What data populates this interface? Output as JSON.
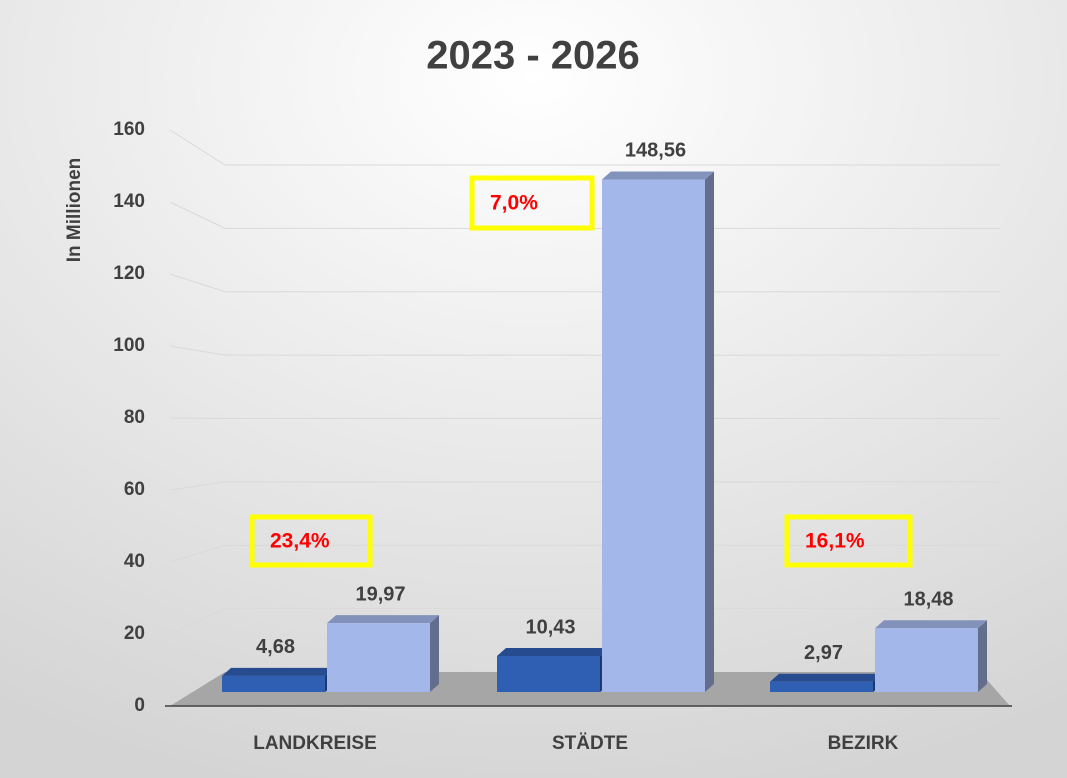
{
  "chart_data": {
    "type": "bar3d",
    "title": "2023 - 2026",
    "y_label": "In Millionen",
    "categories": [
      "LANDKREISE",
      "STÄDTE",
      "BEZIRK"
    ],
    "series": [
      {
        "color": "#2f5fb3",
        "values": [
          4.68,
          10.43,
          2.97
        ],
        "value_labels": [
          "4,68",
          "10,43",
          "2,97"
        ]
      },
      {
        "color": "#a3b7ea",
        "values": [
          19.97,
          148.56,
          18.48
        ],
        "value_labels": [
          "19,97",
          "148,56",
          "18,48"
        ]
      }
    ],
    "annotations": [
      {
        "text": "23,4%"
      },
      {
        "text": "7,0%"
      },
      {
        "text": "16,1%"
      }
    ],
    "annotation_color": "#ff0000",
    "annotation_box_color": "#ffff00",
    "ylim": [
      0,
      160
    ],
    "yticks": [
      0,
      20,
      40,
      60,
      80,
      100,
      120,
      140,
      160
    ],
    "grid": true
  }
}
